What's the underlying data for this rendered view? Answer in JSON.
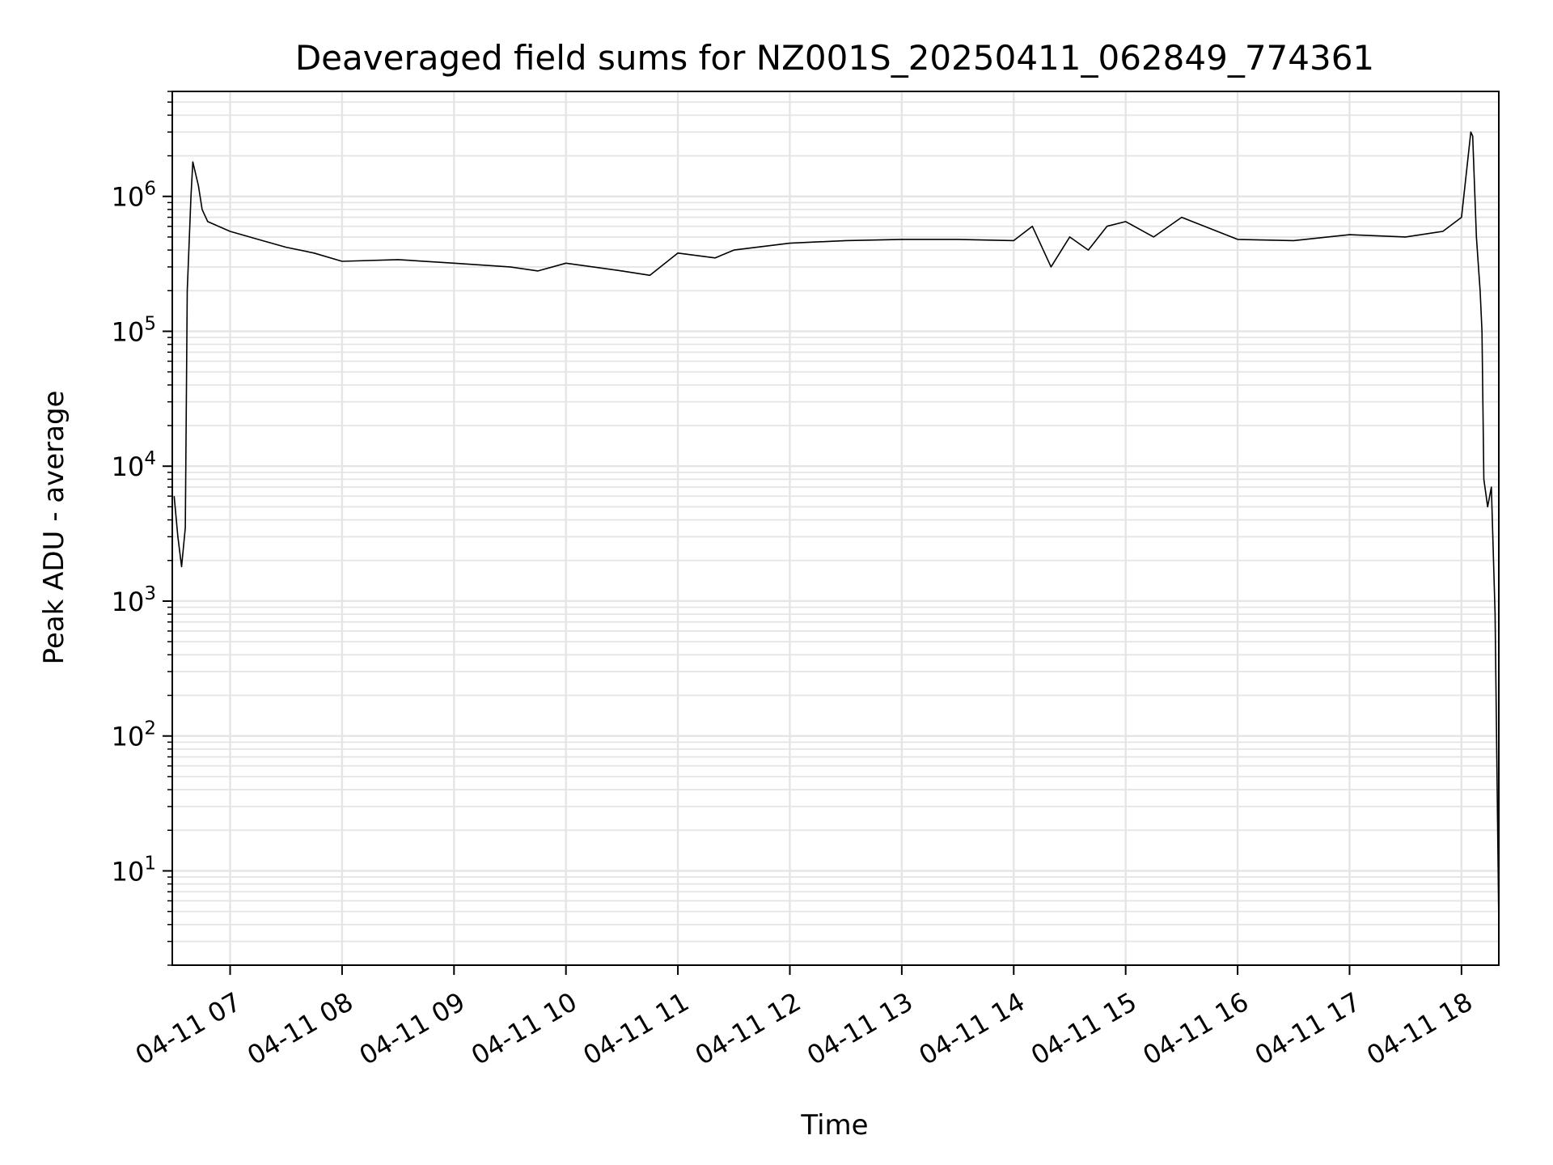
{
  "chart_data": {
    "type": "line",
    "title": "Deaveraged field sums for NZ001S_20250411_062849_774361",
    "xlabel": "Time",
    "ylabel": "Peak ADU - average",
    "y_scale": "log",
    "ylim": [
      2,
      6000000
    ],
    "xlim": [
      "2025-04-11 06:29",
      "2025-04-11 18:20"
    ],
    "grid": true,
    "grid_which": "both",
    "line_color": "#000000",
    "grid_color": "#e5e5e5",
    "x_ticks": [
      {
        "value": "2025-04-11 07:00",
        "label": "04-11 07"
      },
      {
        "value": "2025-04-11 08:00",
        "label": "04-11 08"
      },
      {
        "value": "2025-04-11 09:00",
        "label": "04-11 09"
      },
      {
        "value": "2025-04-11 10:00",
        "label": "04-11 10"
      },
      {
        "value": "2025-04-11 11:00",
        "label": "04-11 11"
      },
      {
        "value": "2025-04-11 12:00",
        "label": "04-11 12"
      },
      {
        "value": "2025-04-11 13:00",
        "label": "04-11 13"
      },
      {
        "value": "2025-04-11 14:00",
        "label": "04-11 14"
      },
      {
        "value": "2025-04-11 15:00",
        "label": "04-11 15"
      },
      {
        "value": "2025-04-11 16:00",
        "label": "04-11 16"
      },
      {
        "value": "2025-04-11 17:00",
        "label": "04-11 17"
      },
      {
        "value": "2025-04-11 18:00",
        "label": "04-11 18"
      }
    ],
    "y_ticks": [
      {
        "value": 10,
        "base": "10",
        "exp": "1"
      },
      {
        "value": 100,
        "base": "10",
        "exp": "2"
      },
      {
        "value": 1000,
        "base": "10",
        "exp": "3"
      },
      {
        "value": 10000,
        "base": "10",
        "exp": "4"
      },
      {
        "value": 100000,
        "base": "10",
        "exp": "5"
      },
      {
        "value": 1000000,
        "base": "10",
        "exp": "6"
      }
    ],
    "series": [
      {
        "x": [
          "2025-04-11 06:30",
          "2025-04-11 06:32",
          "2025-04-11 06:34",
          "2025-04-11 06:36",
          "2025-04-11 06:37",
          "2025-04-11 06:39",
          "2025-04-11 06:40",
          "2025-04-11 06:43",
          "2025-04-11 06:45",
          "2025-04-11 06:48",
          "2025-04-11 07:00",
          "2025-04-11 07:15",
          "2025-04-11 07:30",
          "2025-04-11 07:45",
          "2025-04-11 08:00",
          "2025-04-11 08:30",
          "2025-04-11 09:00",
          "2025-04-11 09:30",
          "2025-04-11 09:45",
          "2025-04-11 10:00",
          "2025-04-11 10:30",
          "2025-04-11 10:45",
          "2025-04-11 11:00",
          "2025-04-11 11:20",
          "2025-04-11 11:30",
          "2025-04-11 12:00",
          "2025-04-11 12:30",
          "2025-04-11 13:00",
          "2025-04-11 13:30",
          "2025-04-11 14:00",
          "2025-04-11 14:10",
          "2025-04-11 14:20",
          "2025-04-11 14:30",
          "2025-04-11 14:40",
          "2025-04-11 14:50",
          "2025-04-11 15:00",
          "2025-04-11 15:15",
          "2025-04-11 15:30",
          "2025-04-11 16:00",
          "2025-04-11 16:30",
          "2025-04-11 17:00",
          "2025-04-11 17:30",
          "2025-04-11 17:50",
          "2025-04-11 18:00",
          "2025-04-11 18:05",
          "2025-04-11 18:06",
          "2025-04-11 18:08",
          "2025-04-11 18:10",
          "2025-04-11 18:11",
          "2025-04-11 18:12",
          "2025-04-11 18:14",
          "2025-04-11 18:16",
          "2025-04-11 18:18",
          "2025-04-11 18:20"
        ],
        "y": [
          6000,
          3000,
          1800,
          3500,
          200000,
          1000000,
          1800000,
          1200000,
          800000,
          650000,
          550000,
          480000,
          420000,
          380000,
          330000,
          340000,
          320000,
          300000,
          280000,
          320000,
          280000,
          260000,
          380000,
          350000,
          400000,
          450000,
          470000,
          480000,
          480000,
          470000,
          600000,
          300000,
          500000,
          400000,
          600000,
          650000,
          500000,
          700000,
          480000,
          470000,
          520000,
          500000,
          550000,
          700000,
          3000000,
          2800000,
          500000,
          200000,
          100000,
          8000,
          5000,
          7000,
          800,
          4
        ]
      }
    ]
  }
}
